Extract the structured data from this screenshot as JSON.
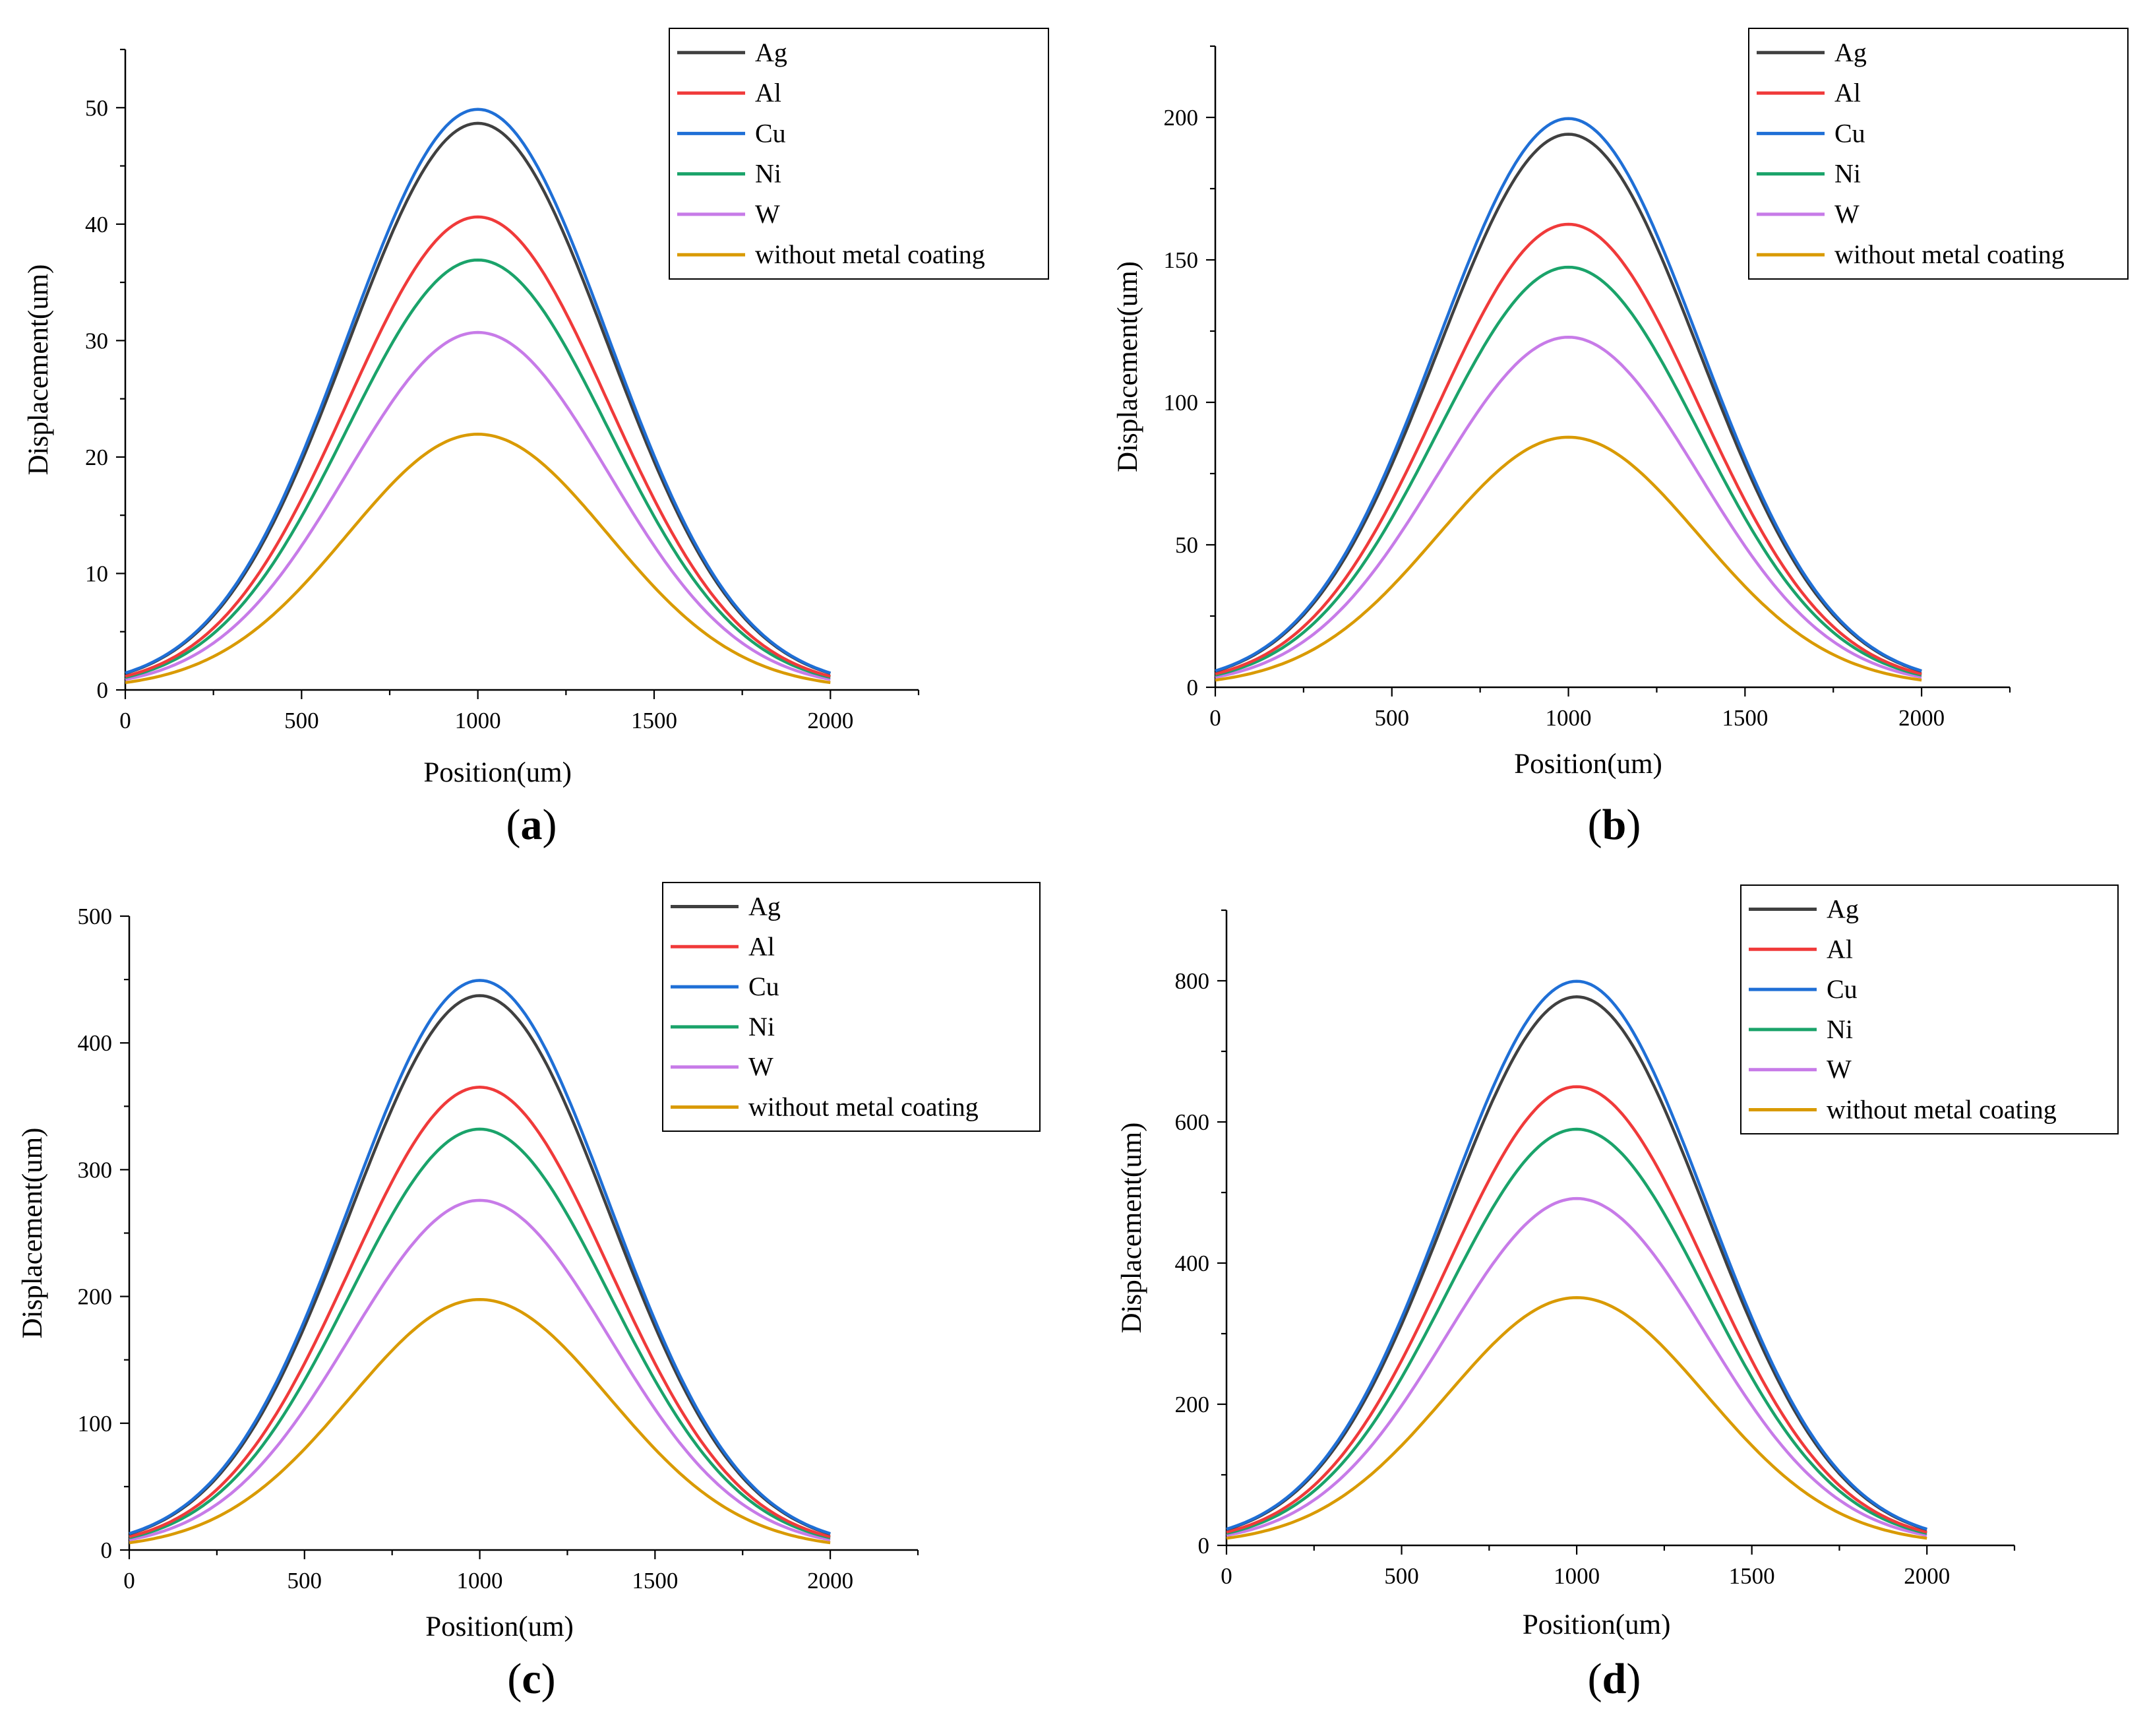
{
  "chart_data": [
    {
      "panel": "a",
      "panel_label": "a",
      "type": "line",
      "title": "",
      "xlabel": "Position(um)",
      "ylabel": "Displacement(um)",
      "xlim": [
        0,
        2250
      ],
      "ylim": [
        0,
        55
      ],
      "xticks": [
        0,
        500,
        1000,
        1500,
        2000
      ],
      "yticks": [
        0,
        10,
        20,
        30,
        40,
        50
      ],
      "x_range": [
        0,
        2000
      ],
      "curve_shape": "gaussian bell centered at 1000 um, sigma approx 370 um",
      "center": 1000,
      "sigma": 370,
      "series": [
        {
          "name": "Ag",
          "color": "#404040",
          "peak": 48.5,
          "edge": 0.8
        },
        {
          "name": "Al",
          "color": "#f03a3a",
          "peak": 40.5,
          "edge": 0.6
        },
        {
          "name": "Cu",
          "color": "#1f6fd6",
          "peak": 49.7,
          "edge": 0.8
        },
        {
          "name": "Ni",
          "color": "#1aa36a",
          "peak": 36.8,
          "edge": 0.6
        },
        {
          "name": "W",
          "color": "#c77be8",
          "peak": 30.6,
          "edge": 0.5
        },
        {
          "name": "without metal coating",
          "color": "#d99a00",
          "peak": 21.9,
          "edge": 0.3
        }
      ]
    },
    {
      "panel": "b",
      "panel_label": "b",
      "type": "line",
      "title": "",
      "xlabel": "Position(um)",
      "ylabel": "Displacement(um)",
      "xlim": [
        0,
        2250
      ],
      "ylim": [
        0,
        225
      ],
      "xticks": [
        0,
        500,
        1000,
        1500,
        2000
      ],
      "yticks": [
        0,
        50,
        100,
        150,
        200
      ],
      "x_range": [
        0,
        2000
      ],
      "curve_shape": "gaussian bell centered at 1000 um, sigma approx 370 um",
      "center": 1000,
      "sigma": 370,
      "series": [
        {
          "name": "Ag",
          "color": "#404040",
          "peak": 193.5,
          "edge": 3
        },
        {
          "name": "Al",
          "color": "#f03a3a",
          "peak": 162,
          "edge": 2.5
        },
        {
          "name": "Cu",
          "color": "#1f6fd6",
          "peak": 199,
          "edge": 3
        },
        {
          "name": "Ni",
          "color": "#1aa36a",
          "peak": 147,
          "edge": 2.2
        },
        {
          "name": "W",
          "color": "#c77be8",
          "peak": 122.5,
          "edge": 1.8
        },
        {
          "name": "without metal coating",
          "color": "#d99a00",
          "peak": 87.5,
          "edge": 1.3
        }
      ]
    },
    {
      "panel": "c",
      "panel_label": "c",
      "type": "line",
      "title": "",
      "xlabel": "Position(um)",
      "ylabel": "Displacement(um)",
      "xlim": [
        0,
        2250
      ],
      "ylim": [
        0,
        500
      ],
      "xticks": [
        0,
        500,
        1000,
        1500,
        2000
      ],
      "yticks": [
        0,
        100,
        200,
        300,
        400,
        500
      ],
      "x_range": [
        0,
        2000
      ],
      "curve_shape": "gaussian bell centered at 1000 um, sigma approx 370 um",
      "center": 1000,
      "sigma": 370,
      "series": [
        {
          "name": "Ag",
          "color": "#404040",
          "peak": 436,
          "edge": 6.5
        },
        {
          "name": "Al",
          "color": "#f03a3a",
          "peak": 364,
          "edge": 5.4
        },
        {
          "name": "Cu",
          "color": "#1f6fd6",
          "peak": 448,
          "edge": 6.7
        },
        {
          "name": "Ni",
          "color": "#1aa36a",
          "peak": 331,
          "edge": 5
        },
        {
          "name": "W",
          "color": "#c77be8",
          "peak": 275,
          "edge": 4.1
        },
        {
          "name": "without metal coating",
          "color": "#d99a00",
          "peak": 197,
          "edge": 3
        }
      ]
    },
    {
      "panel": "d",
      "panel_label": "d",
      "type": "line",
      "title": "",
      "xlabel": "Position(um)",
      "ylabel": "Displacement(um)",
      "xlim": [
        0,
        2250
      ],
      "ylim": [
        0,
        900
      ],
      "xticks": [
        0,
        500,
        1000,
        1500,
        2000
      ],
      "yticks": [
        0,
        200,
        400,
        600,
        800
      ],
      "x_range": [
        0,
        2000
      ],
      "curve_shape": "gaussian bell centered at 1000 um, sigma approx 370 um",
      "center": 1000,
      "sigma": 370,
      "series": [
        {
          "name": "Ag",
          "color": "#404040",
          "peak": 775,
          "edge": 11.5
        },
        {
          "name": "Al",
          "color": "#f03a3a",
          "peak": 648,
          "edge": 9.7
        },
        {
          "name": "Cu",
          "color": "#1f6fd6",
          "peak": 797,
          "edge": 11.9
        },
        {
          "name": "Ni",
          "color": "#1aa36a",
          "peak": 588,
          "edge": 8.8
        },
        {
          "name": "W",
          "color": "#c77be8",
          "peak": 490,
          "edge": 7.3
        },
        {
          "name": "without metal coating",
          "color": "#d99a00",
          "peak": 350,
          "edge": 5.2
        }
      ]
    }
  ]
}
